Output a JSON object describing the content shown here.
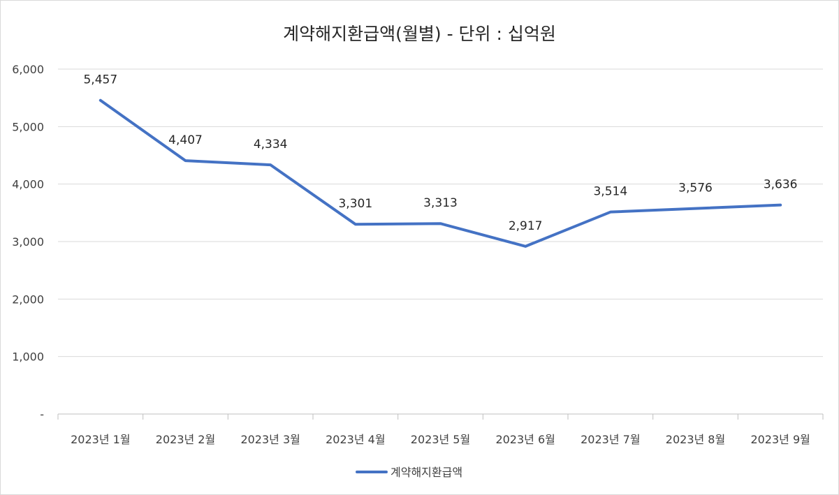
{
  "chart_data": {
    "type": "line",
    "title": "계약해지환급액(월별) - 단위 : 십억원",
    "xlabel": "",
    "ylabel": "",
    "categories": [
      "2023년 1월",
      "2023년 2월",
      "2023년 3월",
      "2023년 4월",
      "2023년 5월",
      "2023년 6월",
      "2023년 7월",
      "2023년 8월",
      "2023년 9월"
    ],
    "series": [
      {
        "name": "계약해지환급액",
        "values": [
          5457,
          4407,
          4334,
          3301,
          3313,
          2917,
          3514,
          3576,
          3636
        ],
        "data_labels": [
          "5,457",
          "4,407",
          "4,334",
          "3,301",
          "3,313",
          "2,917",
          "3,514",
          "3,576",
          "3,636"
        ],
        "color": "#4472c4"
      }
    ],
    "ylim": [
      0,
      6000
    ],
    "yticks": [
      0,
      1000,
      2000,
      3000,
      4000,
      5000,
      6000
    ],
    "ytick_labels": [
      "-",
      "1,000",
      "2,000",
      "3,000",
      "4,000",
      "5,000",
      "6,000"
    ],
    "grid": true,
    "legend": "bottom"
  }
}
